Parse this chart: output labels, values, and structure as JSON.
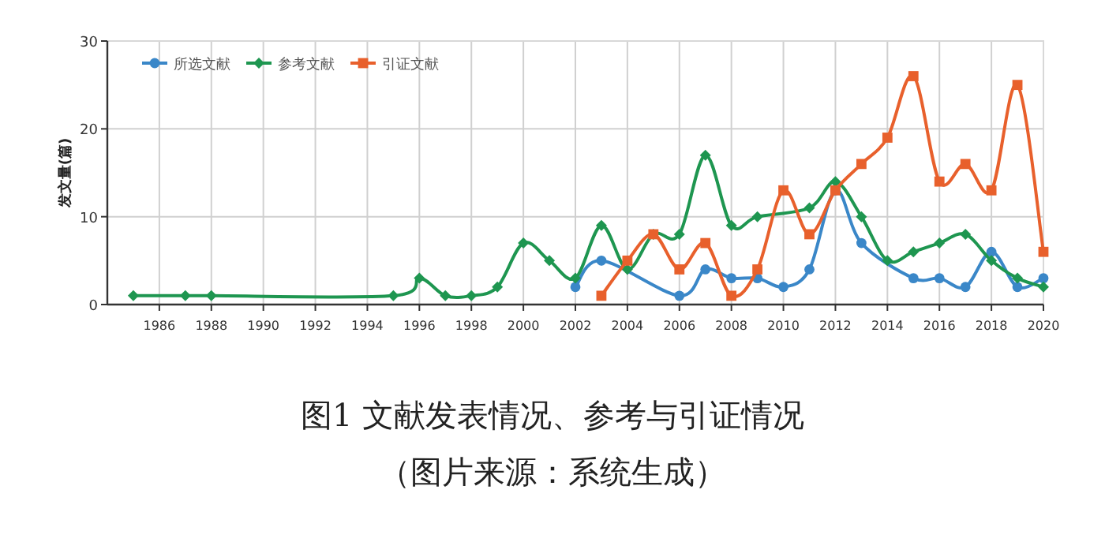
{
  "chart_data": {
    "type": "line",
    "title": "图1 文献发表情况、参考与引证情况",
    "ylabel": "发文量(篇)",
    "annotations": [
      "（图片来源：系统生成）"
    ],
    "xlim": [
      1984,
      2020
    ],
    "xticks": [
      1986,
      1988,
      1990,
      1992,
      1994,
      1996,
      1998,
      2000,
      2002,
      2004,
      2006,
      2008,
      2010,
      2012,
      2014,
      2016,
      2018,
      2020
    ],
    "ylim": [
      0,
      30
    ],
    "yticks": [
      0,
      10,
      20,
      30
    ],
    "grid": true,
    "legend": "top left",
    "series": [
      {
        "name": "所选文献",
        "color": "#3a87c8",
        "marker": "circle",
        "x": [
          2002,
          2003,
          2006,
          2007,
          2008,
          2009,
          2010,
          2011,
          2012,
          2013,
          2015,
          2016,
          2017,
          2018,
          2019,
          2020
        ],
        "values": [
          2,
          5,
          1,
          4,
          3,
          3,
          2,
          4,
          13,
          7,
          3,
          3,
          2,
          6,
          2,
          3
        ]
      },
      {
        "name": "参考文献",
        "color": "#1e9650",
        "marker": "diamond",
        "x": [
          1985,
          1987,
          1988,
          1995,
          1996,
          1997,
          1998,
          1999,
          2000,
          2001,
          2002,
          2003,
          2004,
          2005,
          2006,
          2007,
          2008,
          2009,
          2011,
          2012,
          2013,
          2014,
          2015,
          2016,
          2017,
          2018,
          2019,
          2020
        ],
        "values": [
          1,
          1,
          1,
          1,
          3,
          1,
          1,
          2,
          7,
          5,
          3,
          9,
          4,
          8,
          8,
          17,
          9,
          10,
          11,
          14,
          10,
          5,
          6,
          7,
          8,
          5,
          3,
          2
        ]
      },
      {
        "name": "引证文献",
        "color": "#e8602c",
        "marker": "square",
        "x": [
          2003,
          2004,
          2005,
          2006,
          2007,
          2008,
          2009,
          2010,
          2011,
          2012,
          2013,
          2014,
          2015,
          2016,
          2017,
          2018,
          2019,
          2020
        ],
        "values": [
          1,
          5,
          8,
          4,
          7,
          1,
          4,
          13,
          8,
          13,
          16,
          19,
          26,
          14,
          16,
          13,
          25,
          6
        ]
      }
    ]
  }
}
